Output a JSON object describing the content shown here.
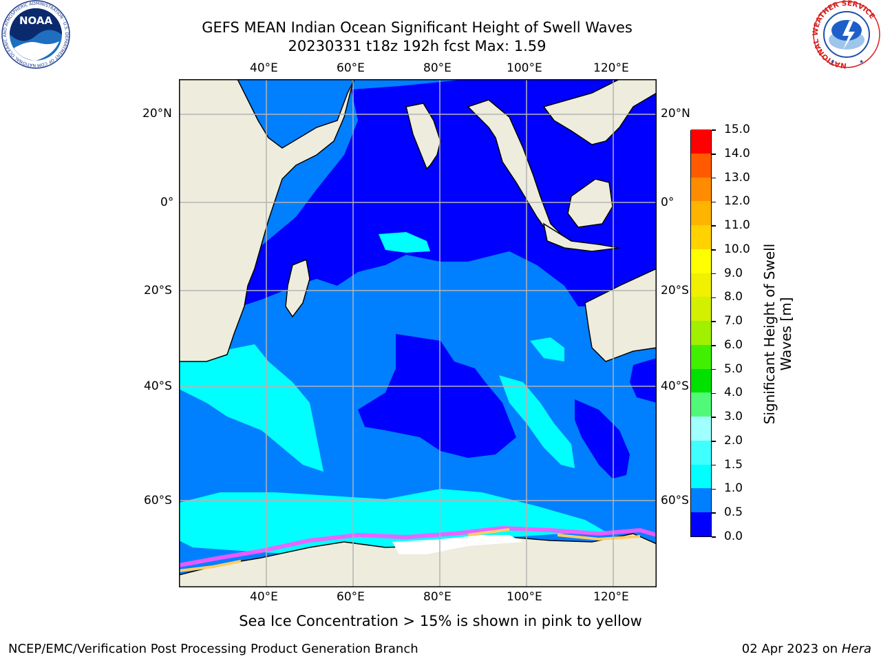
{
  "title": {
    "line1": "GEFS MEAN Indian Ocean Significant Height of Swell Waves",
    "line2": "20230331 t18z 192h fcst   Max: 1.59"
  },
  "map": {
    "lon_labels": [
      "40°E",
      "60°E",
      "80°E",
      "100°E",
      "120°E"
    ],
    "lat_labels": [
      "20°N",
      "0°",
      "20°S",
      "40°S",
      "60°S"
    ],
    "land_color": "#eeecdc",
    "ocean_low_color": "#0000ff"
  },
  "colorbar": {
    "title_line1": "Significant Height of Swell",
    "title_line2": "Waves [m]",
    "ticks": [
      "0.0",
      "0.5",
      "1.0",
      "1.5",
      "2.0",
      "3.0",
      "4.0",
      "5.0",
      "6.0",
      "7.0",
      "8.0",
      "9.0",
      "10.0",
      "11.0",
      "12.0",
      "13.0",
      "14.0",
      "15.0"
    ],
    "colors": [
      "#0000ff",
      "#0080ff",
      "#00ffff",
      "#40ffff",
      "#a0ffff",
      "#50fa78",
      "#00e100",
      "#40f000",
      "#a0f000",
      "#d2f000",
      "#f0f000",
      "#ffff00",
      "#ffd200",
      "#ffb400",
      "#ff8c00",
      "#ff5a00",
      "#ff0000"
    ]
  },
  "note": "Sea Ice Concentration > 15% is shown in pink to yellow",
  "footer": {
    "left": "NCEP/EMC/Verification Post Processing Product Generation Branch",
    "right_date": "02 Apr 2023 on ",
    "right_host": "Hera"
  },
  "logos": {
    "noaa_text": "NOAA",
    "noaa_ring": "NATIONAL OCEANIC AND ATMOSPHERIC ADMINISTRATION · U.S. DEPARTMENT OF COMMERCE",
    "nws_ring": "NATIONAL WEATHER SERVICE"
  }
}
